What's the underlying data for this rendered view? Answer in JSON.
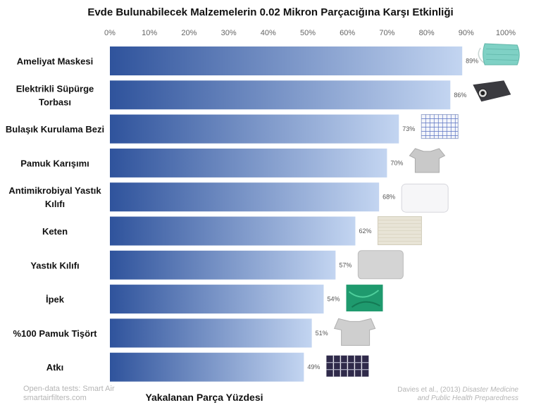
{
  "chart_data": {
    "type": "bar",
    "orientation": "horizontal",
    "title": "Evde Bulunabilecek Malzemelerin 0.02 Mikron Parçacığına Karşı Etkinliği",
    "xlabel": "Yakalanan Parça Yüzdesi",
    "ylabel": "",
    "xlim": [
      0,
      100
    ],
    "x_ticks": [
      "0%",
      "10%",
      "20%",
      "30%",
      "40%",
      "50%",
      "60%",
      "70%",
      "80%",
      "90%",
      "100%"
    ],
    "categories": [
      [
        "Ameliyat Maskesi"
      ],
      [
        "Elektrikli Süpürge",
        "Torbası"
      ],
      [
        "Bulaşık Kurulama Bezi"
      ],
      [
        "Pamuk Karışımı"
      ],
      [
        "Antimikrobiyal Yastık",
        "Kılıfı"
      ],
      [
        "Keten"
      ],
      [
        "Yastık Kılıfı"
      ],
      [
        "İpek"
      ],
      [
        "%100 Pamuk Tişört"
      ],
      [
        "Atkı"
      ]
    ],
    "values": [
      89,
      86,
      73,
      70,
      68,
      62,
      57,
      54,
      51,
      49
    ],
    "value_labels": [
      "89%",
      "86%",
      "73%",
      "70%",
      "68%",
      "62%",
      "57%",
      "54%",
      "51%",
      "49%"
    ],
    "material_icons": [
      "surgical-mask",
      "vacuum-bag",
      "dish-towel",
      "cotton-blend-shirt",
      "antimicrobial-pillowcase",
      "linen-fabric",
      "pillowcase",
      "silk-fabric",
      "cotton-tshirt",
      "scarf"
    ],
    "grid": false,
    "colors": {
      "bar_start": "#2f539c",
      "bar_end": "#c3d5f1",
      "text": "#111111",
      "tick": "#666666"
    }
  },
  "source": {
    "left_line1": "Open-data tests: Smart Air",
    "left_line2": "smartairfilters.com",
    "right_line1_prefix": "Davies et al., (2013) ",
    "right_line1_italic": "Disaster Medicine",
    "right_line2_italic": "and Public Health Preparedness"
  }
}
